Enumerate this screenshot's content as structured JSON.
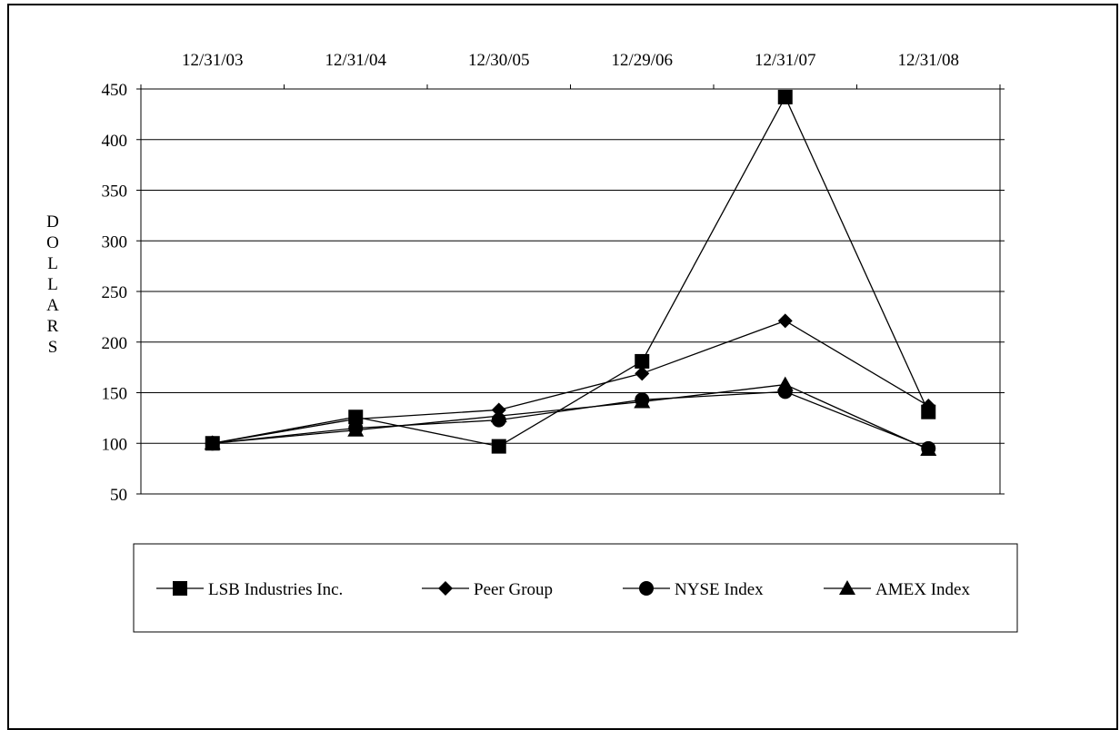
{
  "chart_data": {
    "type": "line",
    "categories": [
      "12/31/03",
      "12/31/04",
      "12/30/05",
      "12/29/06",
      "12/31/07",
      "12/31/08"
    ],
    "ylabel": "DOLLARS",
    "ylim": [
      50,
      450
    ],
    "yticks": [
      50,
      100,
      150,
      200,
      250,
      300,
      350,
      400,
      450
    ],
    "x_axis_position": "top",
    "grid": true,
    "legend_position": "bottom",
    "series": [
      {
        "name": "LSB Industries Inc.",
        "marker": "square",
        "values": [
          100,
          126,
          97,
          181,
          442,
          131
        ]
      },
      {
        "name": "Peer Group",
        "marker": "diamond",
        "values": [
          100,
          124,
          133,
          169,
          221,
          137
        ]
      },
      {
        "name": "NYSE Index",
        "marker": "circle",
        "values": [
          100,
          115,
          123,
          143,
          151,
          95
        ]
      },
      {
        "name": "AMEX Index",
        "marker": "triangle",
        "values": [
          100,
          113,
          127,
          141,
          158,
          94
        ]
      }
    ]
  }
}
